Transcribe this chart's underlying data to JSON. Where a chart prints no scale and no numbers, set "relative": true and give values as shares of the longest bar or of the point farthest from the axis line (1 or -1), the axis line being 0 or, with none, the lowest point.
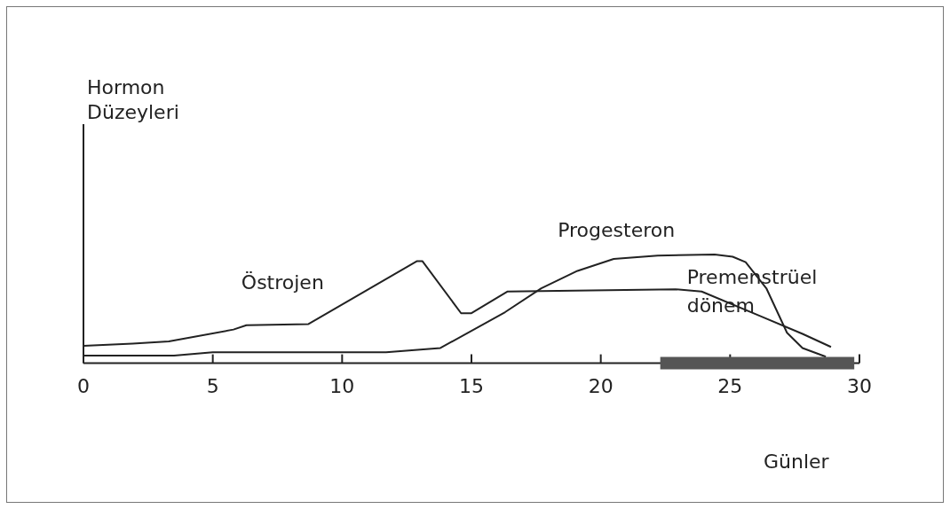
{
  "chart_data": {
    "type": "line",
    "relative": true,
    "annotations": [
      "Hormon Düzeyleri"
    ],
    "xlabel": "Günler",
    "xlim": [
      0,
      30
    ],
    "xticks": [
      0,
      5,
      10,
      15,
      20,
      25,
      30
    ],
    "marker": "none",
    "series": [
      {
        "name": "Östrojen",
        "color": "#222222",
        "x": [
          0,
          1.9,
          3.3,
          5.8,
          6.3,
          8.7,
          12.9,
          13.1,
          14.6,
          15.0,
          16.4,
          22.9,
          23.9,
          26.1,
          27.8,
          28.9
        ],
        "values": [
          0.16,
          0.18,
          0.2,
          0.31,
          0.35,
          0.36,
          0.94,
          0.94,
          0.46,
          0.46,
          0.66,
          0.68,
          0.66,
          0.44,
          0.27,
          0.15
        ]
      },
      {
        "name": "Progesteron",
        "color": "#222222",
        "x": [
          0,
          3.5,
          5.0,
          11.7,
          13.8,
          16.3,
          17.7,
          19.1,
          20.5,
          22.2,
          24.4,
          25.1,
          25.6,
          26.4,
          27.2,
          27.8,
          28.7
        ],
        "values": [
          0.07,
          0.07,
          0.1,
          0.1,
          0.14,
          0.47,
          0.69,
          0.85,
          0.96,
          0.99,
          1,
          0.98,
          0.93,
          0.69,
          0.28,
          0.14,
          0.06
        ]
      }
    ],
    "bands": [
      {
        "axis": "x",
        "from": 22.3,
        "to": 29.8,
        "label": "Premenstrüel dönem",
        "color": "#555555"
      }
    ]
  }
}
